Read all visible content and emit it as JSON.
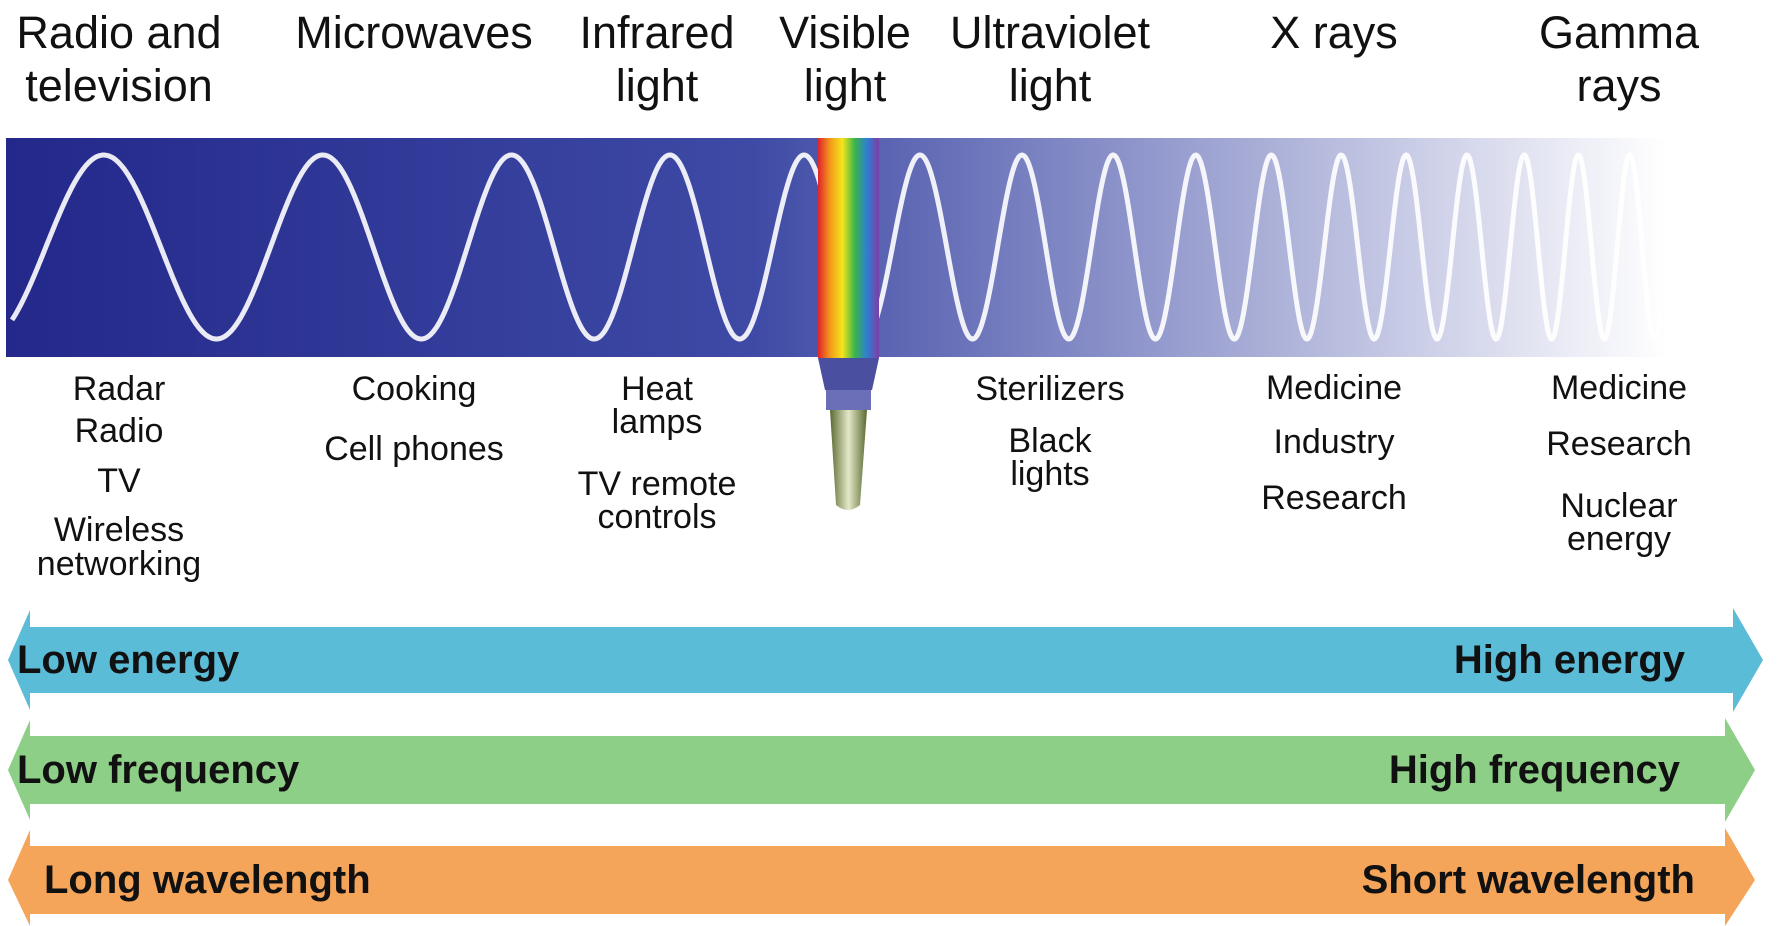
{
  "bands": [
    {
      "name": [
        "Radio and",
        "television"
      ],
      "uses": [
        [
          "Radar"
        ],
        [
          "Radio"
        ],
        [
          "TV"
        ],
        [
          "Wireless",
          "networking"
        ]
      ]
    },
    {
      "name": [
        "Microwaves"
      ],
      "uses": [
        [
          "Cooking"
        ],
        [
          "Cell phones"
        ]
      ]
    },
    {
      "name": [
        "Infrared",
        "light"
      ],
      "uses": [
        [
          "Heat",
          "lamps"
        ],
        [
          "TV remote",
          "controls"
        ]
      ]
    },
    {
      "name": [
        "Visible",
        "light"
      ],
      "uses": []
    },
    {
      "name": [
        "Ultraviolet",
        "light"
      ],
      "uses": [
        [
          "Sterilizers"
        ],
        [
          "Black",
          "lights"
        ]
      ]
    },
    {
      "name": [
        "X rays"
      ],
      "uses": [
        [
          "Medicine"
        ],
        [
          "Industry"
        ],
        [
          "Research"
        ]
      ]
    },
    {
      "name": [
        "Gamma",
        "rays"
      ],
      "uses": [
        [
          "Medicine"
        ],
        [
          "Research"
        ],
        [
          "Nuclear",
          "energy"
        ]
      ]
    }
  ],
  "arrows": [
    {
      "left": "Low energy",
      "right": "High energy"
    },
    {
      "left": "Low frequency",
      "right": "High frequency"
    },
    {
      "left": "Long wavelength",
      "right": "Short wavelength"
    }
  ]
}
